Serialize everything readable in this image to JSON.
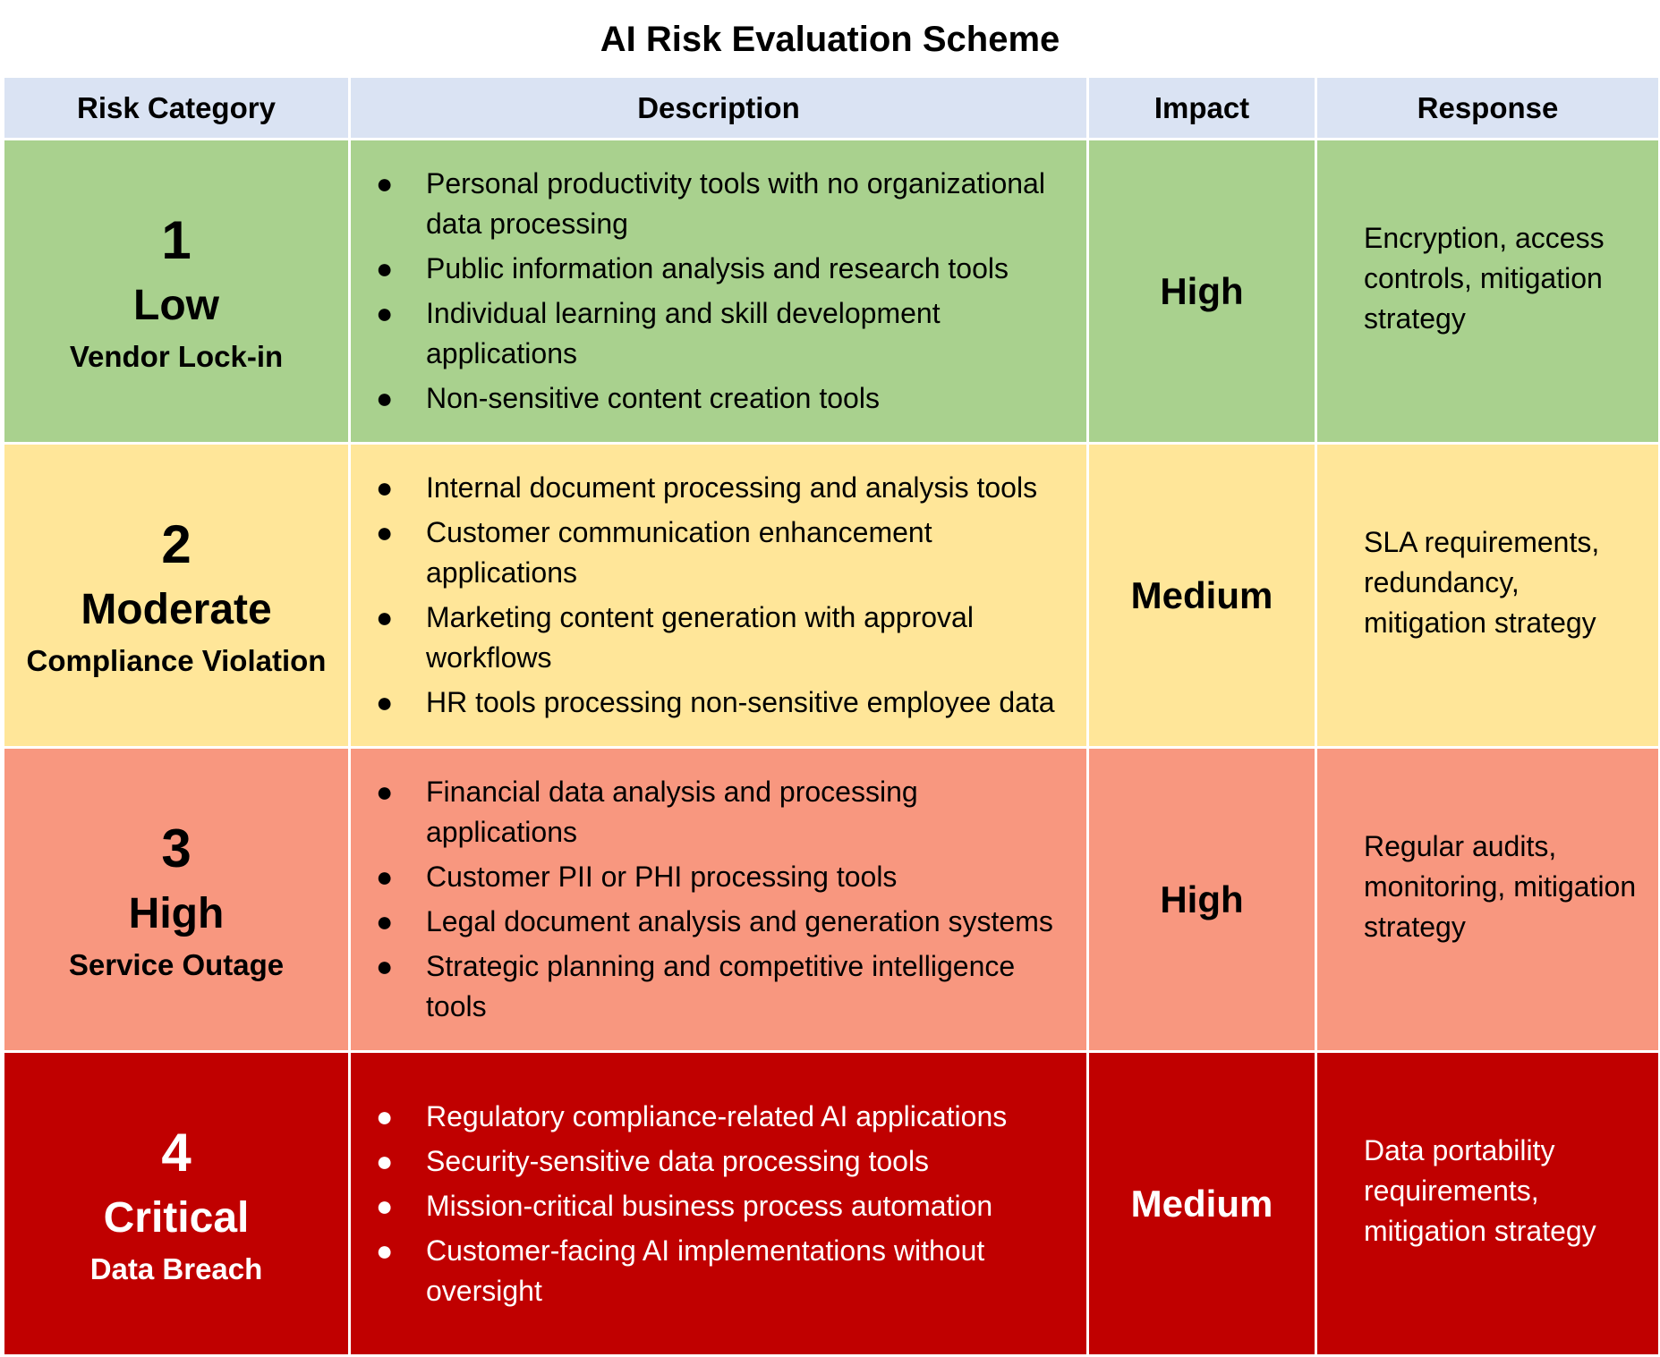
{
  "title": "AI Risk  Evaluation Scheme",
  "columns": {
    "category": "Risk Category",
    "description": "Description",
    "impact": "Impact",
    "response": "Response"
  },
  "colors": {
    "header": "#dae3f3",
    "low": "#a9d18e",
    "moderate": "#ffe699",
    "high": "#f8977f",
    "critical": "#c00000"
  },
  "rows": [
    {
      "number": "1",
      "level": "Low",
      "risk": "Vendor Lock-in",
      "items": [
        "Personal productivity tools with no organizational data processing",
        "Public information analysis and research tools",
        "Individual learning and skill development applications",
        "Non-sensitive content creation tools"
      ],
      "impact": "High",
      "response": "Encryption, access controls, mitigation strategy"
    },
    {
      "number": "2",
      "level": "Moderate",
      "risk": "Compliance Violation",
      "items": [
        "Internal document processing and analysis tools",
        "Customer communication enhancement applications",
        "Marketing content generation with approval workflows",
        "HR tools processing non-sensitive employee data"
      ],
      "impact": "Medium",
      "response": "SLA requirements, redundancy, mitigation strategy"
    },
    {
      "number": "3",
      "level": "High",
      "risk": "Service Outage",
      "items": [
        "Financial data analysis and processing applications",
        "Customer PII or PHI processing tools",
        "Legal document analysis and generation systems",
        "Strategic planning and competitive intelligence tools"
      ],
      "impact": "High",
      "response": "Regular audits, monitoring, mitigation strategy"
    },
    {
      "number": "4",
      "level": "Critical",
      "risk": "Data Breach",
      "items": [
        "Regulatory compliance-related AI applications",
        "Security-sensitive data processing tools",
        "Mission-critical business process automation",
        "Customer-facing AI implementations without oversight"
      ],
      "impact": "Medium",
      "response": "Data portability requirements, mitigation strategy"
    }
  ]
}
